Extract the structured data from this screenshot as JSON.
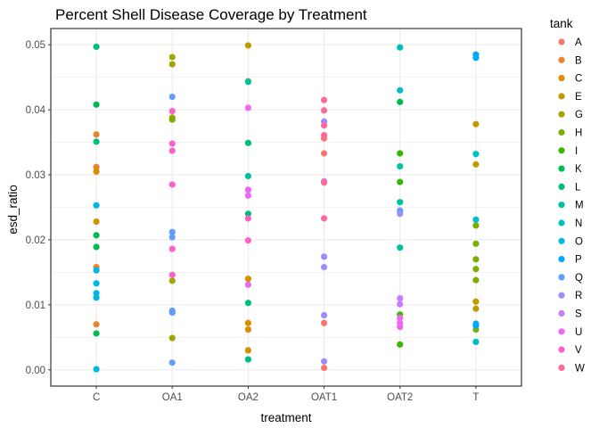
{
  "chart_data": {
    "type": "scatter",
    "title": "Percent Shell Disease Coverage by Treatment",
    "xlabel": "treatment",
    "ylabel": "esd_ratio",
    "categories": [
      "C",
      "OA1",
      "OA2",
      "OAT1",
      "OAT2",
      "T"
    ],
    "ylim": [
      -0.0025,
      0.0525
    ],
    "yticks": [
      0.0,
      0.01,
      0.02,
      0.03,
      0.04,
      0.05
    ],
    "ytick_labels": [
      "0.00",
      "0.01",
      "0.02",
      "0.03",
      "0.04",
      "0.05"
    ],
    "grid": true,
    "legend": {
      "title": "tank",
      "placement": "right"
    },
    "series": [
      {
        "name": "A",
        "color": "#F8766D",
        "points": [
          [
            "OAT1",
            0.0072
          ],
          [
            "OAT1",
            0.0003
          ],
          [
            "OAT1",
            0.0356
          ],
          [
            "OAT1",
            0.0333
          ]
        ]
      },
      {
        "name": "B",
        "color": "#EA8331",
        "points": [
          [
            "C",
            0.0362
          ],
          [
            "C",
            0.0312
          ],
          [
            "C",
            0.0158
          ],
          [
            "C",
            0.007
          ]
        ]
      },
      {
        "name": "C",
        "color": "#D89000",
        "points": [
          [
            "C",
            0.0305
          ],
          [
            "C",
            0.0228
          ],
          [
            "OA2",
            0.014
          ],
          [
            "OA2",
            0.0072
          ],
          [
            "OA2",
            0.0062
          ],
          [
            "OA2",
            0.003
          ]
        ]
      },
      {
        "name": "E",
        "color": "#C09B00",
        "points": [
          [
            "OA2",
            0.0499
          ],
          [
            "OA2",
            0.0444
          ],
          [
            "T",
            0.0378
          ],
          [
            "T",
            0.0316
          ],
          [
            "T",
            0.0105
          ],
          [
            "T",
            0.0094
          ]
        ]
      },
      {
        "name": "G",
        "color": "#A3A500",
        "points": [
          [
            "OA1",
            0.0481
          ],
          [
            "OA1",
            0.047
          ],
          [
            "OA1",
            0.0388
          ],
          [
            "OA1",
            0.0137
          ],
          [
            "OA1",
            0.0049
          ]
        ]
      },
      {
        "name": "H",
        "color": "#7CAE00",
        "points": [
          [
            "OA1",
            0.0385
          ],
          [
            "T",
            0.0222
          ],
          [
            "T",
            0.0194
          ],
          [
            "T",
            0.017
          ],
          [
            "T",
            0.0155
          ],
          [
            "T",
            0.0138
          ],
          [
            "T",
            0.0062
          ]
        ]
      },
      {
        "name": "I",
        "color": "#39B600",
        "points": [
          [
            "OAT2",
            0.0333
          ],
          [
            "OAT2",
            0.0289
          ],
          [
            "OAT2",
            0.0085
          ],
          [
            "OAT2",
            0.0039
          ]
        ]
      },
      {
        "name": "K",
        "color": "#00BB4E",
        "points": [
          [
            "C",
            0.0408
          ],
          [
            "C",
            0.0207
          ],
          [
            "C",
            0.0189
          ],
          [
            "C",
            0.0056
          ],
          [
            "OAT2",
            0.0412
          ]
        ]
      },
      {
        "name": "L",
        "color": "#00BF7D",
        "points": [
          [
            "C",
            0.0497
          ],
          [
            "C",
            0.0351
          ],
          [
            "OA2",
            0.0349
          ],
          [
            "OA2",
            0.024
          ],
          [
            "OA2",
            0.0103
          ],
          [
            "OA2",
            0.0016
          ]
        ]
      },
      {
        "name": "M",
        "color": "#00C1A3",
        "points": [
          [
            "OA2",
            0.0443
          ],
          [
            "OA2",
            0.0298
          ],
          [
            "OAT2",
            0.0313
          ],
          [
            "OAT2",
            0.0258
          ],
          [
            "OAT2",
            0.0188
          ]
        ]
      },
      {
        "name": "N",
        "color": "#00BFC4",
        "points": [
          [
            "OAT2",
            0.0496
          ],
          [
            "OAT2",
            0.043
          ],
          [
            "T",
            0.0332
          ],
          [
            "T",
            0.0231
          ],
          [
            "T",
            0.0043
          ]
        ]
      },
      {
        "name": "O",
        "color": "#00B8E5",
        "points": [
          [
            "C",
            0.0253
          ],
          [
            "C",
            0.0153
          ],
          [
            "C",
            0.0133
          ],
          [
            "C",
            0.0118
          ],
          [
            "C",
            0.0111
          ],
          [
            "C",
            0.0001
          ]
        ]
      },
      {
        "name": "P",
        "color": "#00A9FF",
        "points": [
          [
            "T",
            0.0485
          ],
          [
            "T",
            0.048
          ],
          [
            "T",
            0.0071
          ],
          [
            "T",
            0.0068
          ]
        ]
      },
      {
        "name": "Q",
        "color": "#619CFF",
        "points": [
          [
            "OA1",
            0.042
          ],
          [
            "OA1",
            0.0212
          ],
          [
            "OA1",
            0.0204
          ],
          [
            "OA1",
            0.0091
          ],
          [
            "OA1",
            0.0088
          ],
          [
            "OA1",
            0.0011
          ],
          [
            "OAT2",
            0.0245
          ]
        ]
      },
      {
        "name": "R",
        "color": "#9C8DFF",
        "points": [
          [
            "OAT1",
            0.0382
          ],
          [
            "OAT1",
            0.0174
          ],
          [
            "OAT1",
            0.0158
          ],
          [
            "OAT1",
            0.0084
          ],
          [
            "OAT1",
            0.0013
          ],
          [
            "OAT2",
            0.024
          ]
        ]
      },
      {
        "name": "S",
        "color": "#C77CFF",
        "points": [
          [
            "OAT1",
            0.029
          ],
          [
            "OAT2",
            0.011
          ],
          [
            "OAT2",
            0.0101
          ]
        ]
      },
      {
        "name": "U",
        "color": "#EC69EF",
        "points": [
          [
            "OA2",
            0.0403
          ],
          [
            "OA2",
            0.0277
          ],
          [
            "OA2",
            0.0268
          ],
          [
            "OA2",
            0.0131
          ],
          [
            "OAT2",
            0.008
          ],
          [
            "OAT2",
            0.0072
          ],
          [
            "OAT2",
            0.0066
          ]
        ]
      },
      {
        "name": "V",
        "color": "#FF61C9",
        "points": [
          [
            "OA1",
            0.0398
          ],
          [
            "OA1",
            0.0348
          ],
          [
            "OA1",
            0.0337
          ],
          [
            "OA1",
            0.0285
          ],
          [
            "OA1",
            0.0186
          ],
          [
            "OA1",
            0.0146
          ],
          [
            "OA2",
            0.0233
          ],
          [
            "OA2",
            0.0199
          ]
        ]
      },
      {
        "name": "W",
        "color": "#FF6A98",
        "points": [
          [
            "OAT1",
            0.0415
          ],
          [
            "OAT1",
            0.0399
          ],
          [
            "OAT1",
            0.0376
          ],
          [
            "OAT1",
            0.0361
          ],
          [
            "OAT1",
            0.0288
          ],
          [
            "OAT1",
            0.0233
          ]
        ]
      }
    ]
  }
}
